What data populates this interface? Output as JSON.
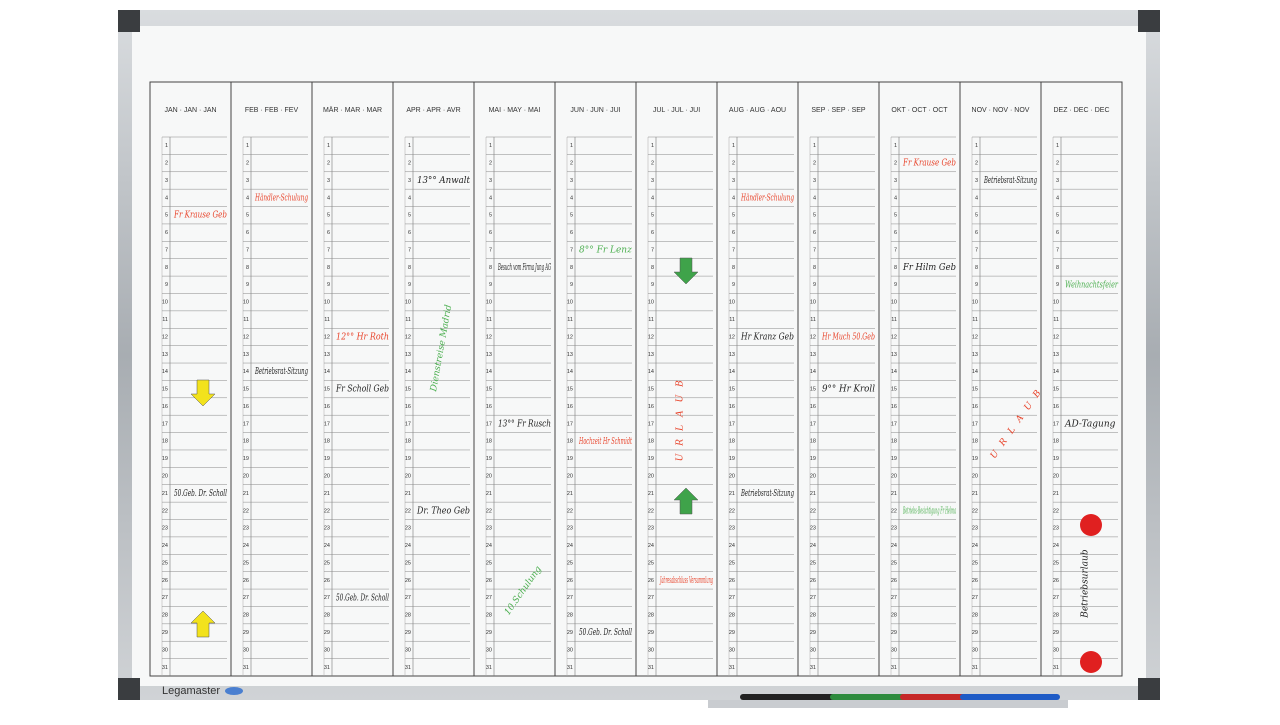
{
  "planner": {
    "brand": "Legamaster",
    "months": [
      "JAN · JAN · JAN",
      "FEB · FEB · FEV",
      "MÄR · MAR · MAR",
      "APR · APR · AVR",
      "MAI · MAY · MAI",
      "JUN · JUN · JUI",
      "JUL · JUL · JUI",
      "AUG · AUG · AOU",
      "SEP · SEP · SEP",
      "OKT · OCT · OCT",
      "NOV · NOV · NOV",
      "DEZ · DEC · DEC"
    ],
    "days": [
      1,
      2,
      3,
      4,
      5,
      6,
      7,
      8,
      9,
      10,
      11,
      12,
      13,
      14,
      15,
      16,
      17,
      18,
      19,
      20,
      21,
      22,
      23,
      24,
      25,
      26,
      27,
      28,
      29,
      30,
      31
    ],
    "notes": [
      {
        "text": "Fr Krause Geb",
        "color": "#e8432a"
      },
      {
        "text": "50.Geb. Dr. Scholl",
        "color": "#222222"
      },
      {
        "text": "Händler-Schulung",
        "color": "#e8432a"
      },
      {
        "text": "Betriebsrat-Sitzung",
        "color": "#222222"
      },
      {
        "text": "12°° Hr Roth",
        "color": "#e8432a"
      },
      {
        "text": "Fr Scholl Geb",
        "color": "#222222"
      },
      {
        "text": "50.Geb. Dr. Scholl",
        "color": "#222222"
      },
      {
        "text": "13°° Anwalt",
        "color": "#222222"
      },
      {
        "text": "Dienstreise Madrid",
        "color": "#4caf50"
      },
      {
        "text": "Dr. Theo Geb",
        "color": "#222222"
      },
      {
        "text": "Besuch vom Firma Jung AG",
        "color": "#222222"
      },
      {
        "text": "13°° Fr Rusch",
        "color": "#222222"
      },
      {
        "text": "10.Schulung",
        "color": "#4caf50"
      },
      {
        "text": "8°° Fr Lenz",
        "color": "#4caf50"
      },
      {
        "text": "Hochzeit Hr Schmidt",
        "color": "#e8432a"
      },
      {
        "text": "50.Geb. Dr. Scholl",
        "color": "#222222"
      },
      {
        "text": "URLAUB",
        "color": "#e8432a"
      },
      {
        "text": "Jahresabschluss Versammlung",
        "color": "#e8432a"
      },
      {
        "text": "Händler-Schulung",
        "color": "#e8432a"
      },
      {
        "text": "Hr Kranz Geb",
        "color": "#222222"
      },
      {
        "text": "Betriebsrat-Sitzung",
        "color": "#222222"
      },
      {
        "text": "Hr Much 50.Geb",
        "color": "#e8432a"
      },
      {
        "text": "9°° Hr Kroll",
        "color": "#222222"
      },
      {
        "text": "Fr Krause Geb",
        "color": "#e8432a"
      },
      {
        "text": "Fr Hilm Geb",
        "color": "#222222"
      },
      {
        "text": "Betriebs-Besichtigung Fr Helma",
        "color": "#4caf50"
      },
      {
        "text": "Betriebsrat-Sitzung",
        "color": "#222222"
      },
      {
        "text": "URLAUB",
        "color": "#e8432a"
      },
      {
        "text": "Weihnachtsfeier",
        "color": "#4caf50"
      },
      {
        "text": "AD-Tagung",
        "color": "#222222"
      },
      {
        "text": "Betriebsurlaub",
        "color": "#222222"
      }
    ]
  }
}
